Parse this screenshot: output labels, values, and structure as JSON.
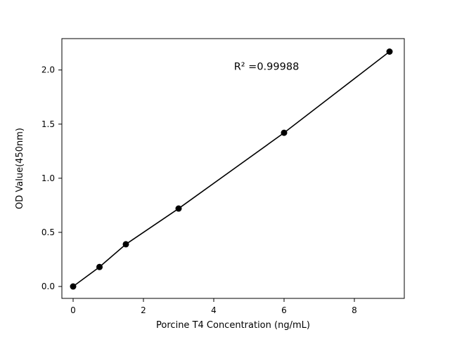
{
  "chart_data": {
    "type": "scatter",
    "series": [
      {
        "name": "standard-curve",
        "x": [
          0,
          0.75,
          1.5,
          3,
          6,
          9
        ],
        "y": [
          0.0,
          0.18,
          0.39,
          0.72,
          1.42,
          2.17
        ],
        "marker": "circle",
        "marker_color": "#000000",
        "line": true,
        "line_color": "#000000"
      }
    ],
    "title": "",
    "xlabel": "Porcine T4 Concentration (ng/mL)",
    "ylabel": "OD Value(450nm)",
    "xlim": [
      -0.32,
      9.42
    ],
    "ylim": [
      -0.11,
      2.29
    ],
    "xticks": [
      0,
      2,
      4,
      6,
      8
    ],
    "yticks": [
      0.0,
      0.5,
      1.0,
      1.5,
      2.0
    ],
    "grid": false,
    "legend": "none",
    "annotation": {
      "text": "R² =0.99988",
      "x": 5.5,
      "y": 2.0
    },
    "background_color": "#ffffff",
    "axis_color": "#000000"
  }
}
